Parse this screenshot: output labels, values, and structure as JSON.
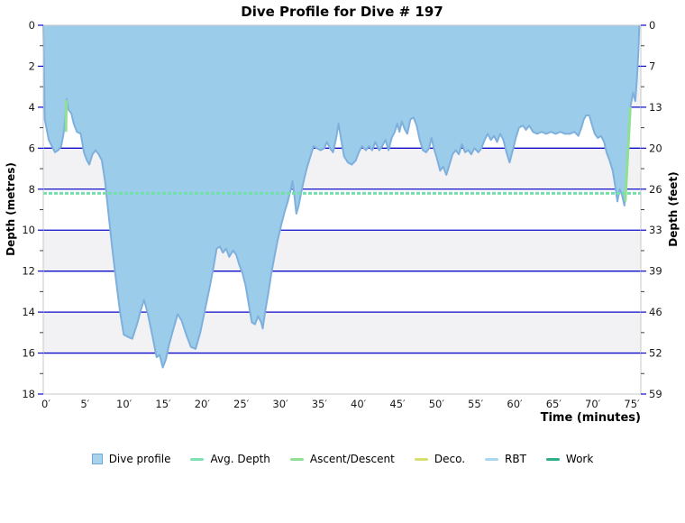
{
  "chart_data": {
    "type": "area",
    "title": "Dive Profile for Dive # 197",
    "xlabel": "Time (minutes)",
    "ylabel_left": "Depth (metres)",
    "ylabel_right": "Depth (feet)",
    "xlim": [
      0,
      76.5
    ],
    "ylim_metres": [
      0,
      18
    ],
    "grid": "horizontal-navy-on-alternating-bands",
    "x_ticks_minutes": [
      0,
      5,
      10,
      15,
      20,
      25,
      30,
      35,
      40,
      45,
      50,
      55,
      60,
      65,
      70,
      75
    ],
    "x_tick_suffix": "′",
    "y_ticks_metres": [
      0,
      2,
      4,
      6,
      8,
      10,
      12,
      14,
      16,
      18
    ],
    "y_tick_labels_feet": [
      "0",
      "7",
      "13",
      "20",
      "26",
      "33",
      "39",
      "46",
      "52",
      "59"
    ],
    "avg_depth_m": 8.2,
    "max_depth_m": 16.7,
    "series": [
      {
        "name": "Dive profile",
        "points": [
          [
            0,
            0
          ],
          [
            0.2,
            4.6
          ],
          [
            0.7,
            5.6
          ],
          [
            1.1,
            5.9
          ],
          [
            1.5,
            6.2
          ],
          [
            1.9,
            6.1
          ],
          [
            2.3,
            5.9
          ],
          [
            2.6,
            5.3
          ],
          [
            2.8,
            4.6
          ],
          [
            3.0,
            3.6
          ],
          [
            3.2,
            4.1
          ],
          [
            3.6,
            4.3
          ],
          [
            3.9,
            4.8
          ],
          [
            4.3,
            5.2
          ],
          [
            4.8,
            5.3
          ],
          [
            5.2,
            6.2
          ],
          [
            5.6,
            6.6
          ],
          [
            5.9,
            6.8
          ],
          [
            6.3,
            6.3
          ],
          [
            6.7,
            6.1
          ],
          [
            7.1,
            6.3
          ],
          [
            7.5,
            6.6
          ],
          [
            7.9,
            7.6
          ],
          [
            8.3,
            9.0
          ],
          [
            8.8,
            10.8
          ],
          [
            9.3,
            12.4
          ],
          [
            9.8,
            13.9
          ],
          [
            10.3,
            15.1
          ],
          [
            10.8,
            15.2
          ],
          [
            11.4,
            15.3
          ],
          [
            12.0,
            14.6
          ],
          [
            12.5,
            13.9
          ],
          [
            12.9,
            13.4
          ],
          [
            13.4,
            14.1
          ],
          [
            14.0,
            15.2
          ],
          [
            14.5,
            16.2
          ],
          [
            14.9,
            16.1
          ],
          [
            15.3,
            16.7
          ],
          [
            15.7,
            16.3
          ],
          [
            16.1,
            15.6
          ],
          [
            16.6,
            14.9
          ],
          [
            17.2,
            14.1
          ],
          [
            17.7,
            14.4
          ],
          [
            18.3,
            15.1
          ],
          [
            18.9,
            15.7
          ],
          [
            19.5,
            15.8
          ],
          [
            20.1,
            15.0
          ],
          [
            20.7,
            13.9
          ],
          [
            21.3,
            12.8
          ],
          [
            21.8,
            11.8
          ],
          [
            22.2,
            10.9
          ],
          [
            22.6,
            10.8
          ],
          [
            23.0,
            11.1
          ],
          [
            23.4,
            10.9
          ],
          [
            23.8,
            11.3
          ],
          [
            24.3,
            11.0
          ],
          [
            24.7,
            11.2
          ],
          [
            25.1,
            11.7
          ],
          [
            25.5,
            12.1
          ],
          [
            25.9,
            12.7
          ],
          [
            26.3,
            13.6
          ],
          [
            26.7,
            14.5
          ],
          [
            27.1,
            14.6
          ],
          [
            27.5,
            14.2
          ],
          [
            27.9,
            14.5
          ],
          [
            28.1,
            14.8
          ],
          [
            28.4,
            14.0
          ],
          [
            28.8,
            13.1
          ],
          [
            29.2,
            12.1
          ],
          [
            29.6,
            11.3
          ],
          [
            30.0,
            10.5
          ],
          [
            30.5,
            9.7
          ],
          [
            30.9,
            9.1
          ],
          [
            31.3,
            8.6
          ],
          [
            31.7,
            8.0
          ],
          [
            31.9,
            7.6
          ],
          [
            32.2,
            8.5
          ],
          [
            32.4,
            9.2
          ],
          [
            32.7,
            8.8
          ],
          [
            33.0,
            8.2
          ],
          [
            33.4,
            7.5
          ],
          [
            33.8,
            6.9
          ],
          [
            34.2,
            6.4
          ],
          [
            34.6,
            5.9
          ],
          [
            35.0,
            6.0
          ],
          [
            35.5,
            6.1
          ],
          [
            36.0,
            6.0
          ],
          [
            36.3,
            5.7
          ],
          [
            36.7,
            6.0
          ],
          [
            37.1,
            6.2
          ],
          [
            37.5,
            5.5
          ],
          [
            37.8,
            4.8
          ],
          [
            38.1,
            5.5
          ],
          [
            38.5,
            6.4
          ],
          [
            39.0,
            6.7
          ],
          [
            39.5,
            6.8
          ],
          [
            40.0,
            6.6
          ],
          [
            40.4,
            6.2
          ],
          [
            40.8,
            5.9
          ],
          [
            41.3,
            6.1
          ],
          [
            41.7,
            5.9
          ],
          [
            42.1,
            6.1
          ],
          [
            42.5,
            5.7
          ],
          [
            43.0,
            6.1
          ],
          [
            43.4,
            5.9
          ],
          [
            43.8,
            5.6
          ],
          [
            44.2,
            6.1
          ],
          [
            44.6,
            5.5
          ],
          [
            45.0,
            5.2
          ],
          [
            45.3,
            4.8
          ],
          [
            45.6,
            5.2
          ],
          [
            45.9,
            4.7
          ],
          [
            46.3,
            5.1
          ],
          [
            46.6,
            5.3
          ],
          [
            47.0,
            4.6
          ],
          [
            47.4,
            4.5
          ],
          [
            47.8,
            4.9
          ],
          [
            48.2,
            5.6
          ],
          [
            48.6,
            6.1
          ],
          [
            49.0,
            6.2
          ],
          [
            49.4,
            6.0
          ],
          [
            49.7,
            5.5
          ],
          [
            50.0,
            6.0
          ],
          [
            50.4,
            6.5
          ],
          [
            50.8,
            7.1
          ],
          [
            51.2,
            6.9
          ],
          [
            51.6,
            7.3
          ],
          [
            52.0,
            6.8
          ],
          [
            52.4,
            6.3
          ],
          [
            52.8,
            6.1
          ],
          [
            53.2,
            6.3
          ],
          [
            53.6,
            5.8
          ],
          [
            54.0,
            6.2
          ],
          [
            54.4,
            6.1
          ],
          [
            54.8,
            6.3
          ],
          [
            55.2,
            6.0
          ],
          [
            55.7,
            6.2
          ],
          [
            56.1,
            6.0
          ],
          [
            56.5,
            5.6
          ],
          [
            56.9,
            5.3
          ],
          [
            57.3,
            5.6
          ],
          [
            57.7,
            5.4
          ],
          [
            58.1,
            5.7
          ],
          [
            58.5,
            5.3
          ],
          [
            58.9,
            5.6
          ],
          [
            59.3,
            6.2
          ],
          [
            59.7,
            6.7
          ],
          [
            60.1,
            6.1
          ],
          [
            60.5,
            5.5
          ],
          [
            60.9,
            5.0
          ],
          [
            61.4,
            4.9
          ],
          [
            61.8,
            5.1
          ],
          [
            62.2,
            4.9
          ],
          [
            62.7,
            5.2
          ],
          [
            63.2,
            5.3
          ],
          [
            63.8,
            5.2
          ],
          [
            64.4,
            5.3
          ],
          [
            65.0,
            5.2
          ],
          [
            65.6,
            5.3
          ],
          [
            66.2,
            5.2
          ],
          [
            66.8,
            5.3
          ],
          [
            67.4,
            5.3
          ],
          [
            68.0,
            5.2
          ],
          [
            68.5,
            5.4
          ],
          [
            68.9,
            5.0
          ],
          [
            69.2,
            4.6
          ],
          [
            69.5,
            4.4
          ],
          [
            69.9,
            4.4
          ],
          [
            70.2,
            4.8
          ],
          [
            70.6,
            5.3
          ],
          [
            71.0,
            5.5
          ],
          [
            71.4,
            5.4
          ],
          [
            71.8,
            5.7
          ],
          [
            72.1,
            6.2
          ],
          [
            72.5,
            6.6
          ],
          [
            72.9,
            7.1
          ],
          [
            73.2,
            7.8
          ],
          [
            73.5,
            8.6
          ],
          [
            73.8,
            8.0
          ],
          [
            74.1,
            8.3
          ],
          [
            74.4,
            8.8
          ],
          [
            74.7,
            7.4
          ],
          [
            75.0,
            5.4
          ],
          [
            75.2,
            3.9
          ],
          [
            75.5,
            3.3
          ],
          [
            75.8,
            3.7
          ],
          [
            76.0,
            2.6
          ],
          [
            76.2,
            1.2
          ],
          [
            76.3,
            0
          ]
        ]
      }
    ],
    "ascent_descent_segments": [
      [
        [
          2.9,
          5.2
        ],
        [
          2.95,
          3.65
        ]
      ],
      [
        [
          74.5,
          8.6
        ],
        [
          75.15,
          4.0
        ]
      ]
    ]
  },
  "legend": {
    "items": [
      {
        "label": "Dive profile",
        "swatch": "square",
        "color": "#a9d3ec",
        "border": "#6fa8d6"
      },
      {
        "label": "Avg. Depth",
        "swatch": "line",
        "color": "#7fe0b4"
      },
      {
        "label": "Ascent/Descent",
        "swatch": "line",
        "color": "#8fe093"
      },
      {
        "label": "Deco.",
        "swatch": "line",
        "color": "#d8de6e"
      },
      {
        "label": "RBT",
        "swatch": "line",
        "color": "#a9d7f2"
      },
      {
        "label": "Work",
        "swatch": "line",
        "color": "#2fae8c"
      }
    ]
  },
  "colors": {
    "profile_fill": "#9bcce9",
    "profile_stroke": "#7fb0dd",
    "gridline": "#0b0bc8",
    "band_gray": "#f2f2f4",
    "band_white": "#ffffff",
    "border": "#c9c9c9",
    "avg_depth_line": "#74dfac",
    "ascent_line": "#8fe093",
    "tick_text": "#1a1a1a",
    "minor_tick": "#444444"
  }
}
